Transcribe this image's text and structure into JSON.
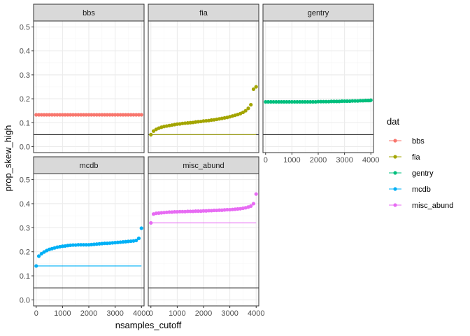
{
  "chart_data": {
    "type": "scatter",
    "xlabel": "nsamples_cutoff",
    "ylabel": "prop_skew_high",
    "xlim": [
      -100,
      4100
    ],
    "ylim": [
      -0.025,
      0.525
    ],
    "x_ticks": [
      0,
      1000,
      2000,
      3000,
      4000
    ],
    "y_ticks": [
      0.0,
      0.1,
      0.2,
      0.3,
      0.4,
      0.5
    ],
    "x_tick_labels": [
      "0",
      "1000",
      "2000",
      "3000",
      "4000"
    ],
    "y_tick_labels": [
      "0.0",
      "0.1",
      "0.2",
      "0.3",
      "0.4",
      "0.5"
    ],
    "reference_line_y": 0.05,
    "grid": true,
    "facets": [
      "bbs",
      "fia",
      "gentry",
      "mcdb",
      "misc_abund"
    ],
    "legend": {
      "title": "dat",
      "position": "right",
      "entries": [
        "bbs",
        "fia",
        "gentry",
        "mcdb",
        "misc_abund"
      ]
    },
    "colors": {
      "bbs": "#F8766D",
      "fia": "#A3A500",
      "gentry": "#00BF7D",
      "mcdb": "#00B0F6",
      "misc_abund": "#E76BF3"
    },
    "series": [
      {
        "name": "bbs",
        "hline": 0.133,
        "x": [
          0,
          100,
          200,
          300,
          400,
          500,
          600,
          700,
          800,
          900,
          1000,
          1100,
          1200,
          1300,
          1400,
          1500,
          1600,
          1700,
          1800,
          1900,
          2000,
          2100,
          2200,
          2300,
          2400,
          2500,
          2600,
          2700,
          2800,
          2900,
          3000,
          3100,
          3200,
          3300,
          3400,
          3500,
          3600,
          3700,
          3800,
          3900,
          4000
        ],
        "y": [
          0.133,
          0.133,
          0.133,
          0.133,
          0.133,
          0.133,
          0.133,
          0.133,
          0.133,
          0.133,
          0.133,
          0.133,
          0.133,
          0.133,
          0.133,
          0.133,
          0.133,
          0.133,
          0.133,
          0.133,
          0.133,
          0.133,
          0.133,
          0.133,
          0.133,
          0.133,
          0.133,
          0.133,
          0.133,
          0.133,
          0.133,
          0.133,
          0.133,
          0.133,
          0.133,
          0.133,
          0.133,
          0.133,
          0.133,
          0.133,
          0.133
        ]
      },
      {
        "name": "fia",
        "hline": 0.05,
        "x": [
          0,
          100,
          200,
          300,
          400,
          500,
          600,
          700,
          800,
          900,
          1000,
          1100,
          1200,
          1300,
          1400,
          1500,
          1600,
          1700,
          1800,
          1900,
          2000,
          2100,
          2200,
          2300,
          2400,
          2500,
          2600,
          2700,
          2800,
          2900,
          3000,
          3100,
          3200,
          3300,
          3400,
          3500,
          3600,
          3700,
          3800,
          3900,
          4000
        ],
        "y": [
          0.05,
          0.065,
          0.072,
          0.077,
          0.081,
          0.084,
          0.086,
          0.088,
          0.09,
          0.092,
          0.094,
          0.095,
          0.097,
          0.098,
          0.099,
          0.1,
          0.101,
          0.103,
          0.104,
          0.105,
          0.107,
          0.108,
          0.109,
          0.111,
          0.112,
          0.114,
          0.116,
          0.118,
          0.12,
          0.122,
          0.125,
          0.128,
          0.131,
          0.134,
          0.138,
          0.143,
          0.15,
          0.16,
          0.175,
          0.24,
          0.25
        ]
      },
      {
        "name": "gentry",
        "hline": 0.187,
        "x": [
          0,
          100,
          200,
          300,
          400,
          500,
          600,
          700,
          800,
          900,
          1000,
          1100,
          1200,
          1300,
          1400,
          1500,
          1600,
          1700,
          1800,
          1900,
          2000,
          2100,
          2200,
          2300,
          2400,
          2500,
          2600,
          2700,
          2800,
          2900,
          3000,
          3100,
          3200,
          3300,
          3400,
          3500,
          3600,
          3700,
          3800,
          3900,
          4000
        ],
        "y": [
          0.187,
          0.187,
          0.187,
          0.187,
          0.187,
          0.187,
          0.187,
          0.187,
          0.187,
          0.187,
          0.187,
          0.187,
          0.187,
          0.187,
          0.187,
          0.187,
          0.187,
          0.187,
          0.187,
          0.187,
          0.188,
          0.188,
          0.188,
          0.188,
          0.188,
          0.189,
          0.189,
          0.189,
          0.189,
          0.19,
          0.19,
          0.19,
          0.19,
          0.191,
          0.191,
          0.191,
          0.192,
          0.192,
          0.193,
          0.193,
          0.194
        ]
      },
      {
        "name": "mcdb",
        "hline": 0.141,
        "x": [
          0,
          100,
          200,
          300,
          400,
          500,
          600,
          700,
          800,
          900,
          1000,
          1100,
          1200,
          1300,
          1400,
          1500,
          1600,
          1700,
          1800,
          1900,
          2000,
          2100,
          2200,
          2300,
          2400,
          2500,
          2600,
          2700,
          2800,
          2900,
          3000,
          3100,
          3200,
          3300,
          3400,
          3500,
          3600,
          3700,
          3800,
          3900,
          4000
        ],
        "y": [
          0.141,
          0.182,
          0.192,
          0.199,
          0.205,
          0.21,
          0.213,
          0.216,
          0.219,
          0.221,
          0.223,
          0.224,
          0.226,
          0.227,
          0.228,
          0.228,
          0.229,
          0.229,
          0.229,
          0.229,
          0.229,
          0.23,
          0.231,
          0.232,
          0.233,
          0.234,
          0.235,
          0.235,
          0.236,
          0.237,
          0.238,
          0.239,
          0.24,
          0.241,
          0.242,
          0.243,
          0.244,
          0.245,
          0.247,
          0.256,
          0.298
        ]
      },
      {
        "name": "misc_abund",
        "hline": 0.32,
        "x": [
          0,
          100,
          200,
          300,
          400,
          500,
          600,
          700,
          800,
          900,
          1000,
          1100,
          1200,
          1300,
          1400,
          1500,
          1600,
          1700,
          1800,
          1900,
          2000,
          2100,
          2200,
          2300,
          2400,
          2500,
          2600,
          2700,
          2800,
          2900,
          3000,
          3100,
          3200,
          3300,
          3400,
          3500,
          3600,
          3700,
          3800,
          3900,
          4000
        ],
        "y": [
          0.32,
          0.357,
          0.36,
          0.361,
          0.362,
          0.363,
          0.364,
          0.365,
          0.365,
          0.366,
          0.366,
          0.367,
          0.367,
          0.367,
          0.368,
          0.368,
          0.368,
          0.369,
          0.369,
          0.369,
          0.37,
          0.37,
          0.371,
          0.371,
          0.372,
          0.372,
          0.373,
          0.373,
          0.374,
          0.375,
          0.375,
          0.376,
          0.377,
          0.378,
          0.379,
          0.381,
          0.383,
          0.386,
          0.39,
          0.4,
          0.44
        ]
      }
    ]
  }
}
